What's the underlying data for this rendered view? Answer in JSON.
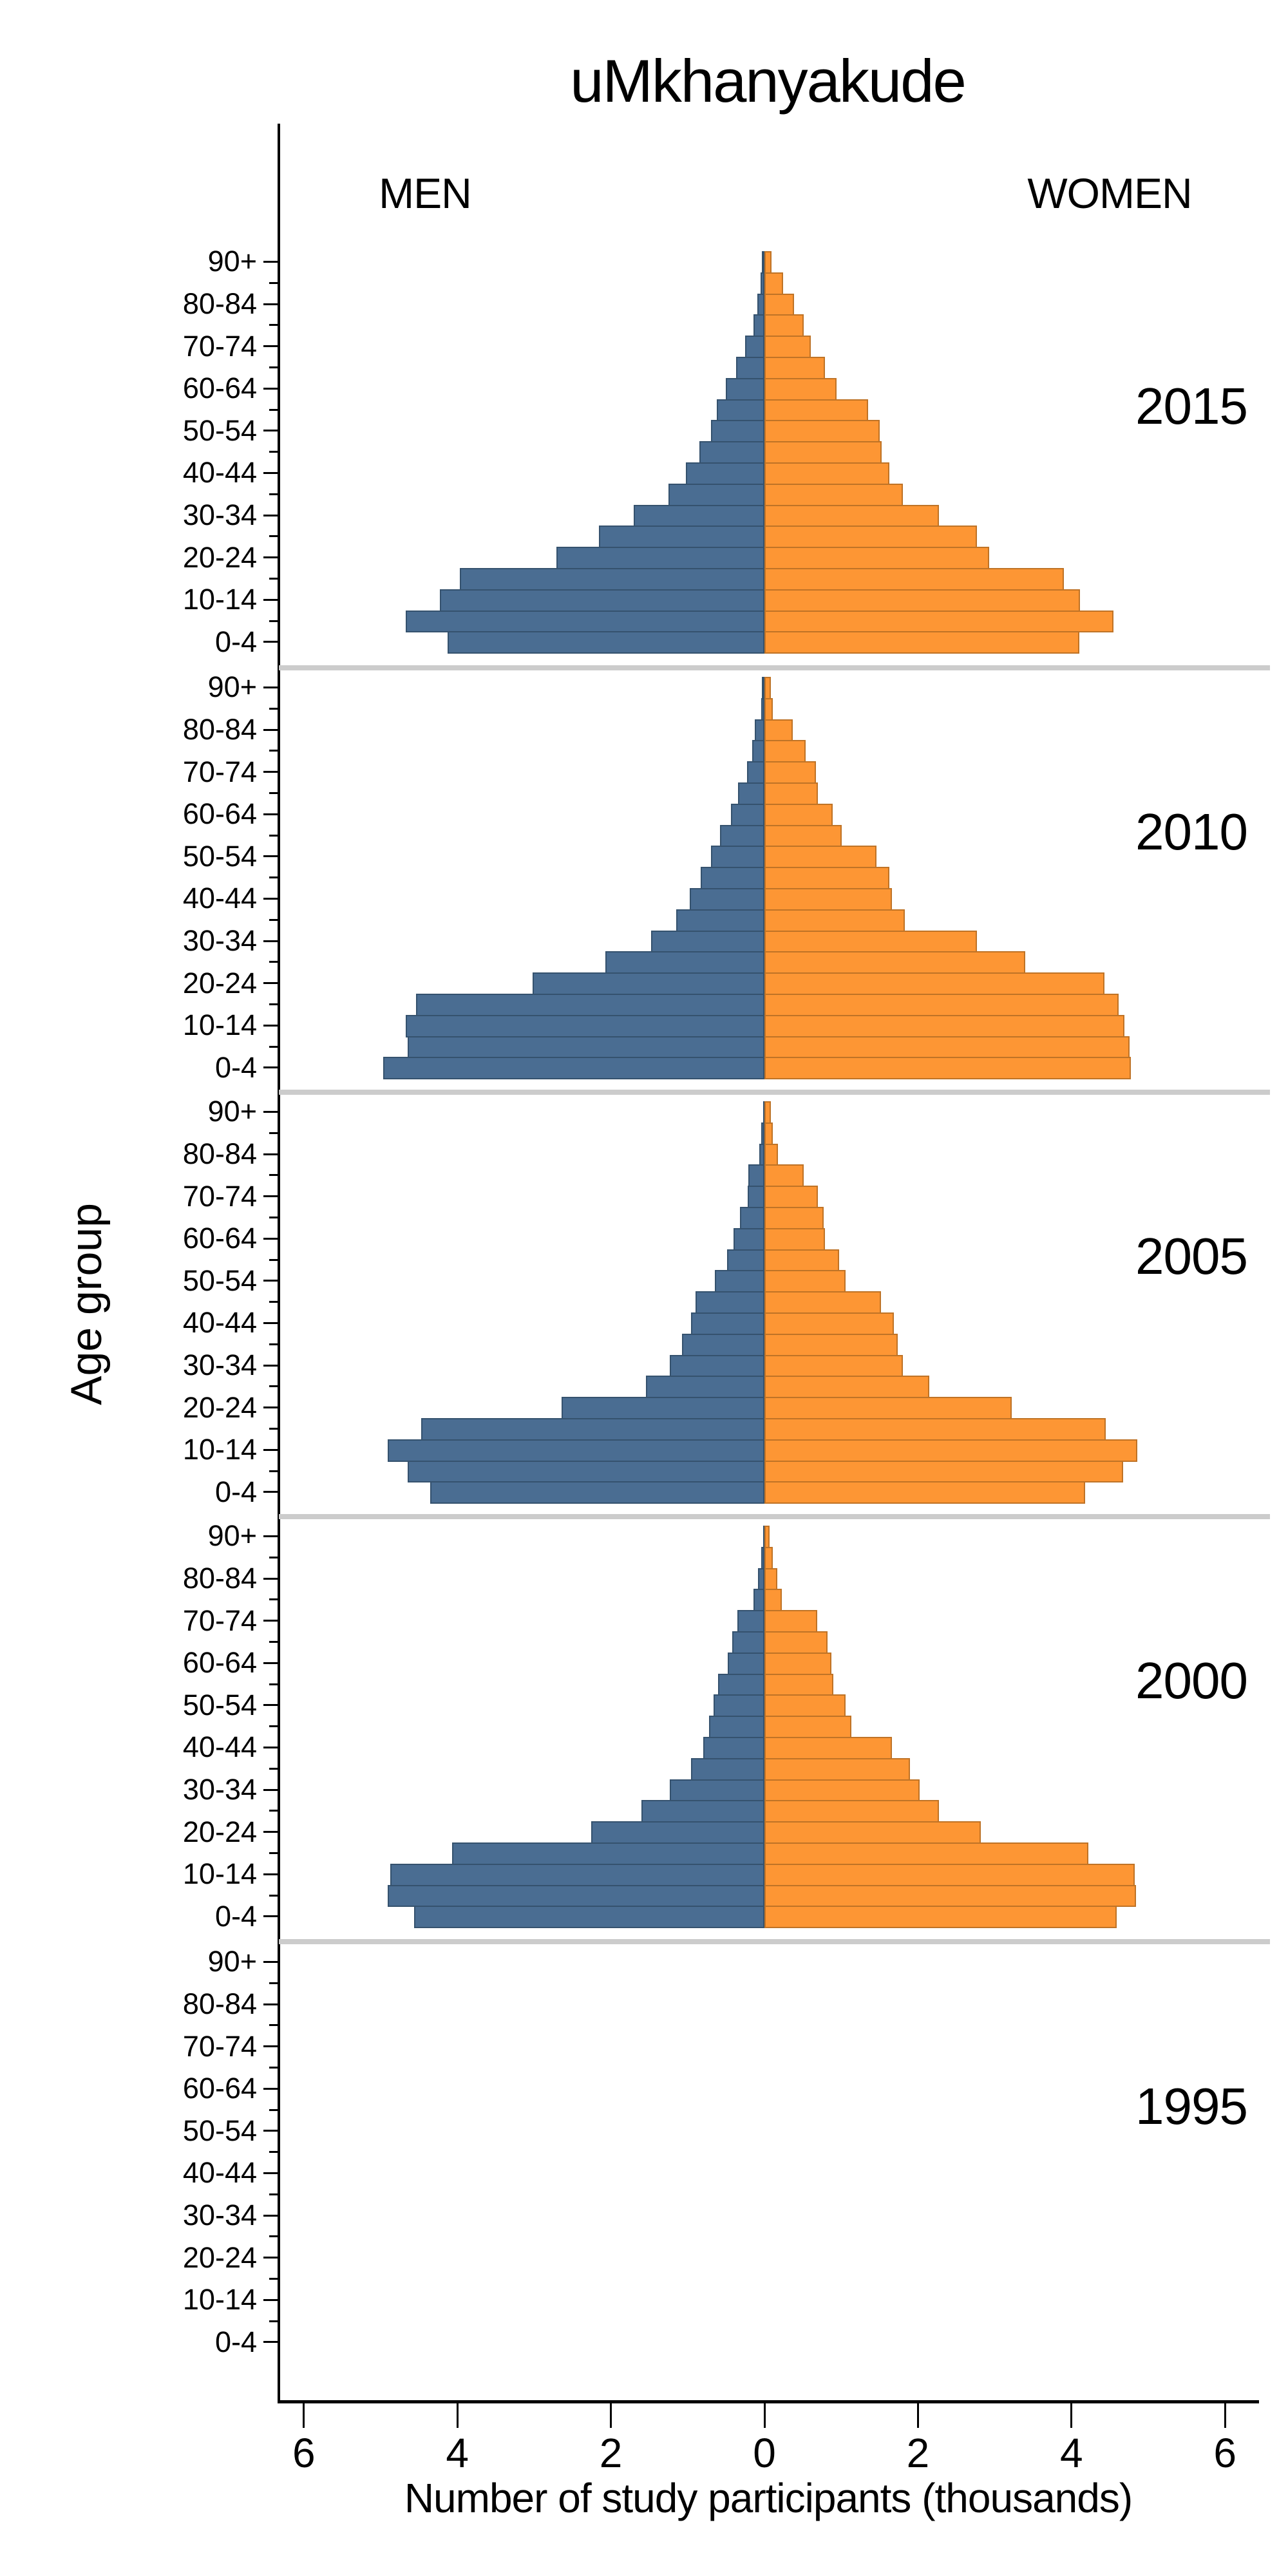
{
  "chart_data": {
    "type": "bar",
    "variant": "population-pyramid-small-multiples",
    "title": "uMkhanyakude",
    "xlabel": "Number of study participants (thousands)",
    "ylabel": "Age group",
    "men_label": "MEN",
    "women_label": "WOMEN",
    "units": "thousands of study participants",
    "age_groups_top_to_bottom": [
      "90+",
      "85-89",
      "80-84",
      "75-79",
      "70-74",
      "65-69",
      "60-64",
      "55-59",
      "50-54",
      "45-49",
      "40-44",
      "35-39",
      "30-34",
      "25-29",
      "20-24",
      "15-19",
      "10-14",
      "5-9",
      "0-4"
    ],
    "labeled_age_ticks": [
      "90+",
      "80-84",
      "70-74",
      "60-64",
      "50-54",
      "40-44",
      "30-34",
      "20-24",
      "10-14",
      "0-4"
    ],
    "x_tick_labels": [
      "6",
      "4",
      "2",
      "0",
      "2",
      "4",
      "6"
    ],
    "x_tick_values": [
      -6,
      -4,
      -2,
      0,
      2,
      4,
      6
    ],
    "xlim": [
      -6.35,
      6.35
    ],
    "grid": false,
    "legend_position": "column-headers-top",
    "colors": {
      "men": "#4a6d92",
      "men_border": "#35526e",
      "women": "#fd9634",
      "women_border": "#bf7326",
      "separator": "#cccccc",
      "axis": "#000000",
      "background": "#ffffff"
    },
    "panels": [
      {
        "year": "2015",
        "men": [
          0.03,
          0.05,
          0.09,
          0.14,
          0.25,
          0.37,
          0.5,
          0.62,
          0.7,
          0.85,
          1.02,
          1.25,
          1.7,
          2.16,
          2.71,
          3.97,
          4.23,
          4.67,
          4.13
        ],
        "women": [
          0.09,
          0.24,
          0.39,
          0.51,
          0.6,
          0.79,
          0.94,
          1.35,
          1.5,
          1.53,
          1.63,
          1.8,
          2.27,
          2.77,
          2.93,
          3.9,
          4.11,
          4.55,
          4.1
        ]
      },
      {
        "year": "2010",
        "men": [
          0.03,
          0.04,
          0.13,
          0.16,
          0.23,
          0.34,
          0.44,
          0.58,
          0.7,
          0.83,
          0.97,
          1.15,
          1.48,
          2.07,
          3.02,
          4.54,
          4.67,
          4.65,
          4.97
        ],
        "women": [
          0.08,
          0.11,
          0.37,
          0.54,
          0.67,
          0.7,
          0.89,
          1.01,
          1.46,
          1.63,
          1.66,
          1.83,
          2.77,
          3.4,
          4.43,
          4.61,
          4.69,
          4.76,
          4.77
        ]
      },
      {
        "year": "2005",
        "men": [
          0.02,
          0.04,
          0.07,
          0.21,
          0.22,
          0.32,
          0.4,
          0.49,
          0.65,
          0.9,
          0.96,
          1.07,
          1.23,
          1.54,
          2.64,
          4.47,
          4.91,
          4.65,
          4.35
        ],
        "women": [
          0.08,
          0.11,
          0.18,
          0.51,
          0.7,
          0.77,
          0.79,
          0.97,
          1.06,
          1.52,
          1.69,
          1.74,
          1.8,
          2.15,
          3.22,
          4.45,
          4.86,
          4.67,
          4.18
        ]
      },
      {
        "year": "2000",
        "men": [
          0.02,
          0.04,
          0.08,
          0.14,
          0.35,
          0.42,
          0.48,
          0.6,
          0.66,
          0.72,
          0.8,
          0.96,
          1.23,
          1.6,
          2.26,
          4.07,
          4.87,
          4.91,
          4.56
        ],
        "women": [
          0.07,
          0.11,
          0.17,
          0.23,
          0.69,
          0.82,
          0.87,
          0.9,
          1.06,
          1.13,
          1.66,
          1.9,
          2.02,
          2.27,
          2.82,
          4.22,
          4.82,
          4.84,
          4.59
        ]
      },
      {
        "year": "1995",
        "men": [],
        "women": []
      }
    ]
  }
}
